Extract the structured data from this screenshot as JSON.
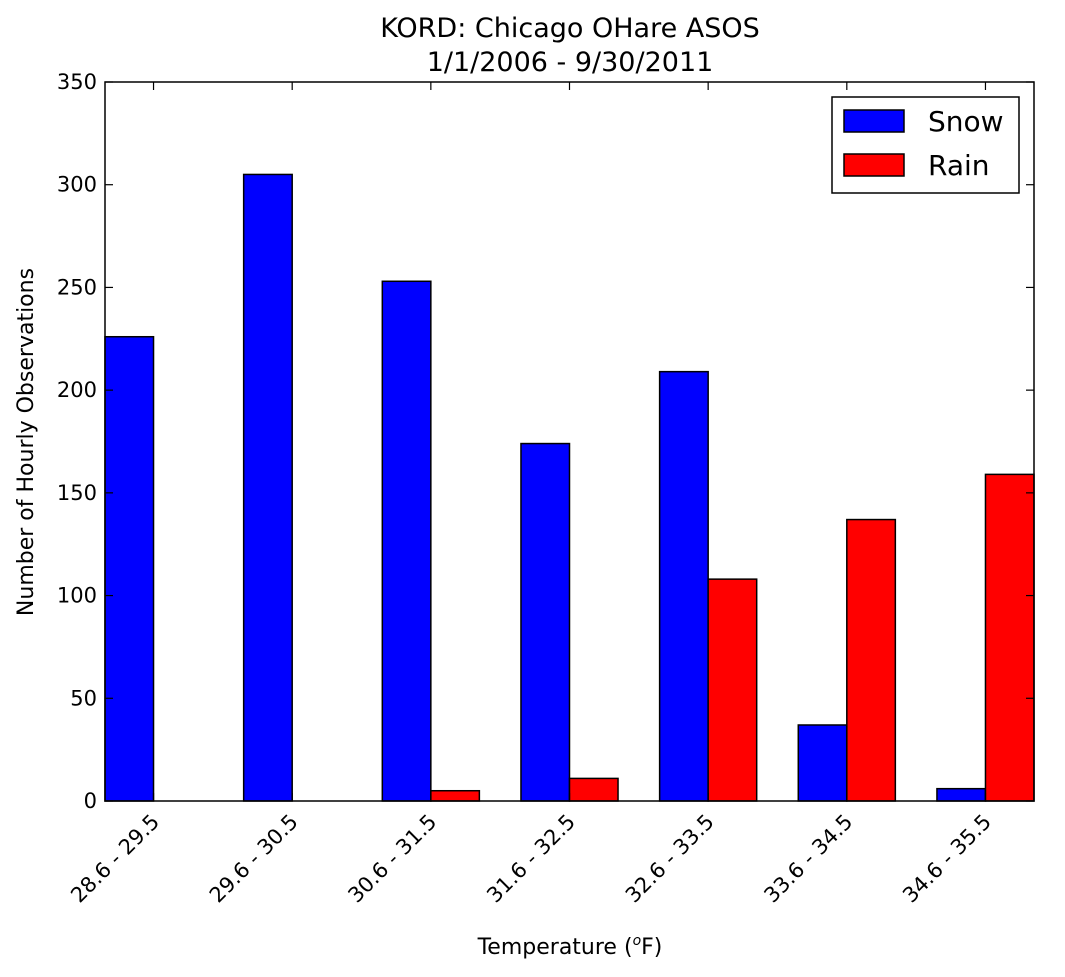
{
  "chart_data": {
    "type": "bar",
    "title": "KORD: Chicago OHare ASOS",
    "subtitle": "1/1/2006 - 9/30/2011",
    "xlabel": "Temperature",
    "xlabel_unit_prefix": "(",
    "xlabel_unit_sup": "o",
    "xlabel_unit_suffix": "F)",
    "ylabel": "Number of Hourly Observations",
    "ylim": [
      0,
      350
    ],
    "yticks": [
      "0",
      "50",
      "100",
      "150",
      "200",
      "250",
      "300",
      "350"
    ],
    "categories": [
      "28.6 - 29.5",
      "29.6 - 30.5",
      "30.6 - 31.5",
      "31.6 - 32.5",
      "32.6 - 33.5",
      "33.6 - 34.5",
      "34.6 - 35.5"
    ],
    "series": [
      {
        "name": "Snow",
        "color": "#0000ff",
        "values": [
          226,
          305,
          253,
          174,
          209,
          37,
          6
        ]
      },
      {
        "name": "Rain",
        "color": "#ff0000",
        "values": [
          0,
          0,
          5,
          11,
          108,
          137,
          159
        ]
      }
    ],
    "legend_position": "top-right",
    "grid": false
  }
}
